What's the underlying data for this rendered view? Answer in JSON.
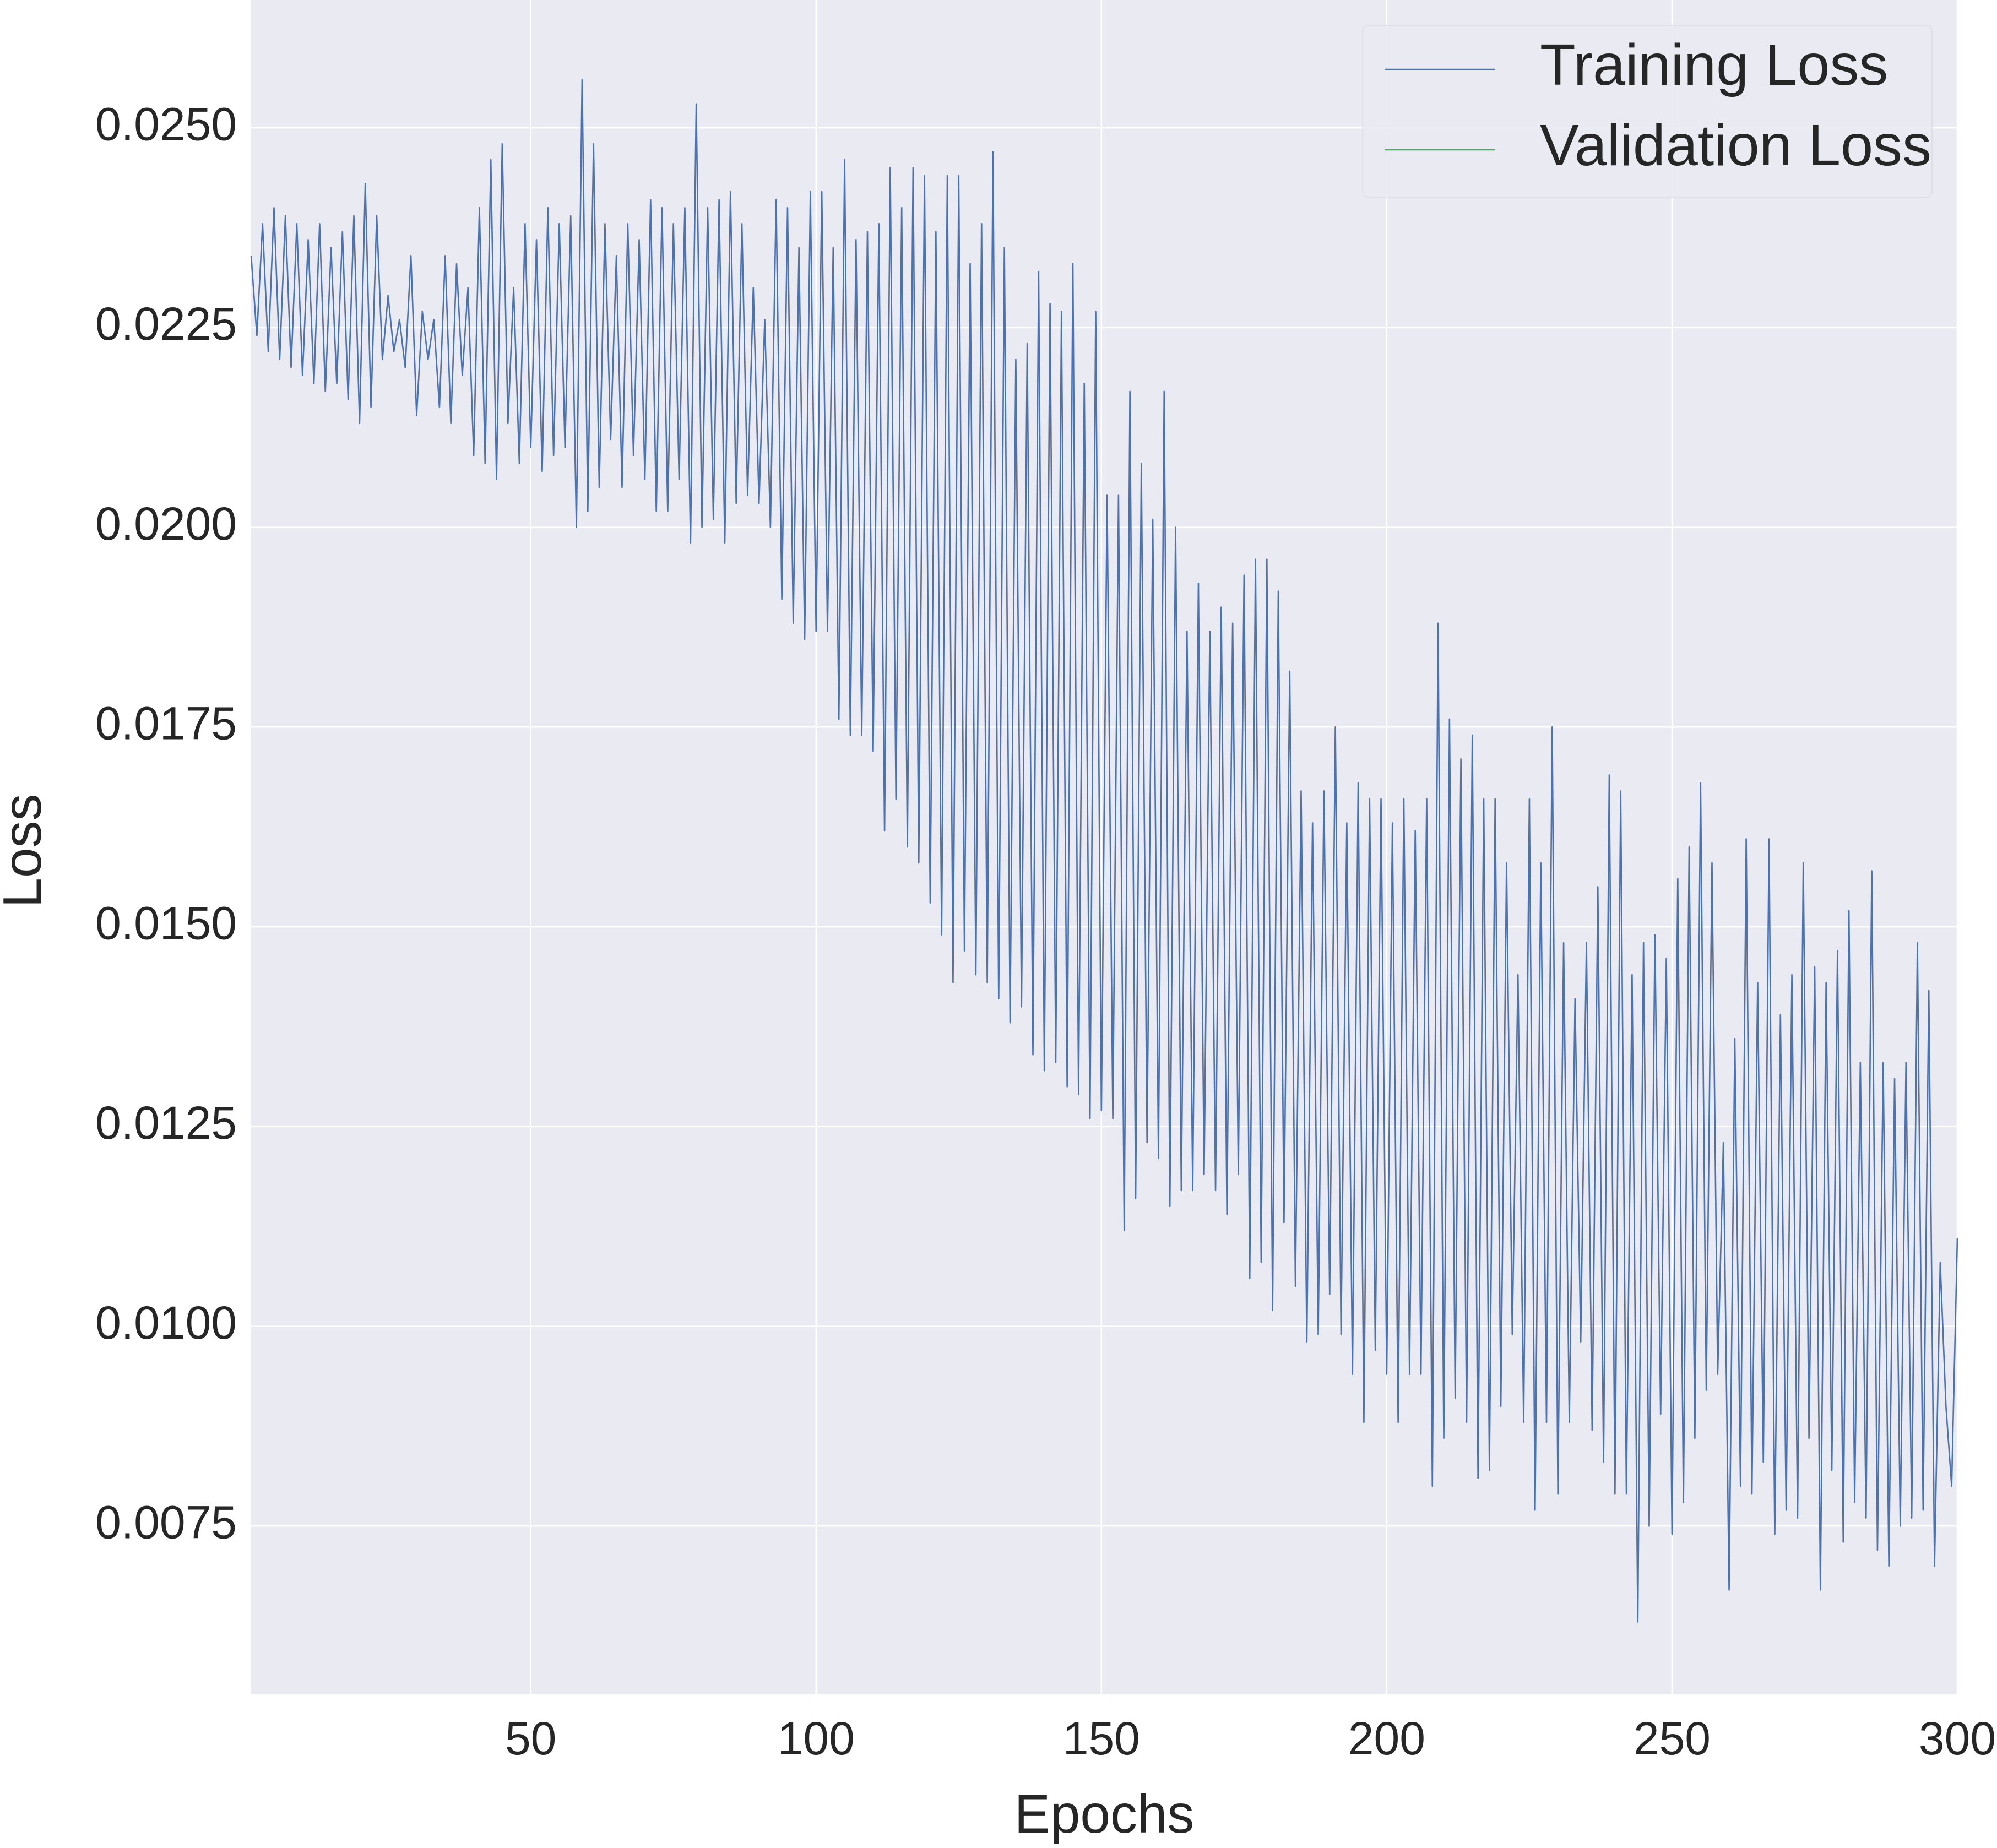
{
  "chart_data": {
    "type": "line",
    "x_label": "Epochs",
    "y_label": "Loss",
    "x": [
      1,
      2,
      3,
      4,
      5,
      6,
      7,
      8,
      9,
      10,
      11,
      12,
      13,
      14,
      15,
      16,
      17,
      18,
      19,
      20,
      21,
      22,
      23,
      24,
      25,
      26,
      27,
      28,
      29,
      30,
      31,
      32,
      33,
      34,
      35,
      36,
      37,
      38,
      39,
      40,
      41,
      42,
      43,
      44,
      45,
      46,
      47,
      48,
      49,
      50,
      51,
      52,
      53,
      54,
      55,
      56,
      57,
      58,
      59,
      60,
      61,
      62,
      63,
      64,
      65,
      66,
      67,
      68,
      69,
      70,
      71,
      72,
      73,
      74,
      75,
      76,
      77,
      78,
      79,
      80,
      81,
      82,
      83,
      84,
      85,
      86,
      87,
      88,
      89,
      90,
      91,
      92,
      93,
      94,
      95,
      96,
      97,
      98,
      99,
      100,
      101,
      102,
      103,
      104,
      105,
      106,
      107,
      108,
      109,
      110,
      111,
      112,
      113,
      114,
      115,
      116,
      117,
      118,
      119,
      120,
      121,
      122,
      123,
      124,
      125,
      126,
      127,
      128,
      129,
      130,
      131,
      132,
      133,
      134,
      135,
      136,
      137,
      138,
      139,
      140,
      141,
      142,
      143,
      144,
      145,
      146,
      147,
      148,
      149,
      150,
      151,
      152,
      153,
      154,
      155,
      156,
      157,
      158,
      159,
      160,
      161,
      162,
      163,
      164,
      165,
      166,
      167,
      168,
      169,
      170,
      171,
      172,
      173,
      174,
      175,
      176,
      177,
      178,
      179,
      180,
      181,
      182,
      183,
      184,
      185,
      186,
      187,
      188,
      189,
      190,
      191,
      192,
      193,
      194,
      195,
      196,
      197,
      198,
      199,
      200,
      201,
      202,
      203,
      204,
      205,
      206,
      207,
      208,
      209,
      210,
      211,
      212,
      213,
      214,
      215,
      216,
      217,
      218,
      219,
      220,
      221,
      222,
      223,
      224,
      225,
      226,
      227,
      228,
      229,
      230,
      231,
      232,
      233,
      234,
      235,
      236,
      237,
      238,
      239,
      240,
      241,
      242,
      243,
      244,
      245,
      246,
      247,
      248,
      249,
      250,
      251,
      252,
      253,
      254,
      255,
      256,
      257,
      258,
      259,
      260,
      261,
      262,
      263,
      264,
      265,
      266,
      267,
      268,
      269,
      270,
      271,
      272,
      273,
      274,
      275,
      276,
      277,
      278,
      279,
      280,
      281,
      282,
      283,
      284,
      285,
      286,
      287,
      288,
      289,
      290,
      291,
      292,
      293,
      294,
      295,
      296,
      297,
      298,
      299,
      300
    ],
    "series": [
      {
        "name": "Training Loss",
        "color": "#4c72b0",
        "values": [
          0.0234,
          0.0224,
          0.0238,
          0.0222,
          0.024,
          0.0221,
          0.0239,
          0.022,
          0.0238,
          0.0219,
          0.0236,
          0.0218,
          0.0238,
          0.0217,
          0.0235,
          0.0218,
          0.0237,
          0.0216,
          0.0239,
          0.0213,
          0.0243,
          0.0215,
          0.0239,
          0.0221,
          0.0229,
          0.0222,
          0.0226,
          0.022,
          0.0234,
          0.0214,
          0.0227,
          0.0221,
          0.0226,
          0.0215,
          0.0234,
          0.0213,
          0.0233,
          0.0219,
          0.023,
          0.0209,
          0.024,
          0.0208,
          0.0246,
          0.0206,
          0.0248,
          0.0213,
          0.023,
          0.0208,
          0.0238,
          0.021,
          0.0236,
          0.0207,
          0.024,
          0.0209,
          0.0238,
          0.021,
          0.0239,
          0.02,
          0.0256,
          0.0202,
          0.0248,
          0.0205,
          0.0238,
          0.0211,
          0.0234,
          0.0205,
          0.0238,
          0.0209,
          0.0236,
          0.0206,
          0.0241,
          0.0202,
          0.024,
          0.0202,
          0.0238,
          0.0206,
          0.024,
          0.0198,
          0.0253,
          0.02,
          0.024,
          0.0201,
          0.0241,
          0.0198,
          0.0242,
          0.0203,
          0.0238,
          0.0204,
          0.023,
          0.0203,
          0.0226,
          0.02,
          0.0241,
          0.0191,
          0.024,
          0.0188,
          0.0235,
          0.0186,
          0.0242,
          0.0187,
          0.0242,
          0.0187,
          0.0235,
          0.0176,
          0.0246,
          0.0174,
          0.0236,
          0.0174,
          0.0237,
          0.0172,
          0.0238,
          0.0162,
          0.0245,
          0.0166,
          0.024,
          0.016,
          0.0245,
          0.0158,
          0.0244,
          0.0153,
          0.0237,
          0.0149,
          0.0244,
          0.0143,
          0.0244,
          0.0147,
          0.0233,
          0.0144,
          0.0238,
          0.0143,
          0.0247,
          0.0141,
          0.0235,
          0.0138,
          0.0221,
          0.014,
          0.0223,
          0.0134,
          0.0232,
          0.0132,
          0.0228,
          0.0133,
          0.0227,
          0.013,
          0.0233,
          0.0129,
          0.0218,
          0.0126,
          0.0227,
          0.0127,
          0.0204,
          0.0126,
          0.0204,
          0.0112,
          0.0217,
          0.0116,
          0.0208,
          0.0123,
          0.0201,
          0.0121,
          0.0217,
          0.0115,
          0.02,
          0.0117,
          0.0187,
          0.0117,
          0.0193,
          0.0119,
          0.0187,
          0.0117,
          0.019,
          0.0114,
          0.0188,
          0.0119,
          0.0194,
          0.0106,
          0.0196,
          0.0108,
          0.0196,
          0.0102,
          0.0192,
          0.0113,
          0.0182,
          0.0105,
          0.0167,
          0.0098,
          0.0163,
          0.0099,
          0.0167,
          0.0104,
          0.0175,
          0.0099,
          0.0163,
          0.0094,
          0.0168,
          0.0088,
          0.0166,
          0.0097,
          0.0166,
          0.0094,
          0.0163,
          0.0088,
          0.0166,
          0.0094,
          0.0162,
          0.0094,
          0.0166,
          0.008,
          0.0188,
          0.0086,
          0.0176,
          0.0091,
          0.0171,
          0.0088,
          0.0174,
          0.0081,
          0.0166,
          0.0082,
          0.0166,
          0.009,
          0.0158,
          0.0099,
          0.0144,
          0.0088,
          0.0166,
          0.0077,
          0.0158,
          0.0088,
          0.0175,
          0.0079,
          0.0148,
          0.0088,
          0.0141,
          0.0098,
          0.0148,
          0.0087,
          0.0155,
          0.0083,
          0.0169,
          0.0079,
          0.0167,
          0.0079,
          0.0144,
          0.0063,
          0.0148,
          0.0075,
          0.0149,
          0.0089,
          0.0146,
          0.0074,
          0.0156,
          0.0078,
          0.016,
          0.0086,
          0.0168,
          0.0092,
          0.0158,
          0.0094,
          0.0123,
          0.0067,
          0.0136,
          0.008,
          0.0161,
          0.0079,
          0.0143,
          0.0083,
          0.0161,
          0.0074,
          0.0139,
          0.0077,
          0.0144,
          0.0076,
          0.0158,
          0.0086,
          0.0145,
          0.0067,
          0.0143,
          0.0082,
          0.0147,
          0.0073,
          0.0152,
          0.0078,
          0.0133,
          0.0076,
          0.0157,
          0.0072,
          0.0133,
          0.007,
          0.0131,
          0.0075,
          0.0133,
          0.0076,
          0.0148,
          0.0077,
          0.0142,
          0.007,
          0.0108,
          0.009,
          0.008,
          0.0111
        ]
      },
      {
        "name": "Validation Loss",
        "color": "#55a868",
        "values": [
          null,
          null,
          null,
          null,
          null,
          null,
          null,
          null,
          null,
          null,
          null,
          null,
          null,
          null,
          null,
          null,
          null,
          null,
          null,
          null,
          null,
          null,
          null,
          null,
          null,
          null,
          null,
          null,
          null,
          null,
          null,
          null,
          null,
          null,
          null,
          null,
          null,
          null,
          null,
          null,
          null,
          null,
          null,
          null,
          null,
          null,
          null,
          null,
          null,
          null,
          null,
          null,
          null,
          null,
          null,
          null,
          null,
          null,
          null,
          null,
          null,
          null,
          null,
          null,
          null,
          null,
          null,
          null,
          null,
          null,
          null,
          null,
          null,
          null,
          null,
          null,
          null,
          null,
          null,
          null,
          null,
          null,
          null,
          null,
          null,
          null,
          null,
          null,
          null,
          null,
          null,
          null,
          null,
          null,
          null,
          null,
          null,
          null,
          null,
          null,
          null,
          null,
          null,
          null,
          null,
          null,
          null,
          null,
          null,
          null,
          null,
          null,
          null,
          null,
          null,
          null,
          null,
          null,
          null,
          null,
          null,
          null,
          null,
          null,
          null,
          null,
          null,
          null,
          null,
          null,
          null,
          null,
          null,
          null,
          null,
          null,
          null,
          null,
          null,
          null,
          null,
          null,
          null,
          null,
          null,
          null,
          null,
          null,
          null,
          null,
          null,
          null,
          null,
          null,
          null,
          null,
          null,
          null,
          null,
          null,
          null,
          null,
          null,
          null,
          null,
          null,
          null,
          null,
          null,
          null,
          null,
          null,
          null,
          null,
          null,
          null,
          null,
          null,
          null,
          null,
          null,
          null,
          null,
          null,
          null,
          null,
          null,
          null,
          null,
          null,
          null,
          null,
          null,
          null,
          null,
          null,
          null,
          null,
          null,
          null,
          null,
          null,
          null,
          null,
          null,
          null,
          null,
          null,
          null,
          null,
          null,
          null,
          null,
          null,
          null,
          null,
          null,
          null,
          null,
          null,
          null,
          null,
          null,
          null,
          null,
          null,
          null,
          null,
          null,
          null,
          null,
          null,
          null,
          null,
          null,
          null,
          null,
          null,
          null,
          null,
          null,
          null,
          null,
          null,
          null,
          null,
          null,
          null,
          null,
          null,
          null,
          null,
          null,
          null,
          null,
          null,
          null,
          null,
          null,
          null,
          null,
          null,
          null,
          null,
          null,
          null,
          null,
          null,
          null,
          null,
          null,
          null,
          null,
          null,
          null,
          null,
          null,
          null,
          null,
          null,
          null,
          null,
          null,
          null,
          null,
          null,
          null,
          null,
          null,
          null,
          null,
          null,
          null,
          null,
          null,
          null,
          null,
          null,
          null,
          null
        ]
      }
    ],
    "xlim": [
      1,
      300
    ],
    "xticks": [
      50,
      100,
      150,
      200,
      250,
      300
    ],
    "ylim": [
      0.0054,
      0.0266
    ],
    "yticks": [
      {
        "value": 0.0075,
        "label": "0.0075"
      },
      {
        "value": 0.01,
        "label": "0.0100"
      },
      {
        "value": 0.0125,
        "label": "0.0125"
      },
      {
        "value": 0.015,
        "label": "0.0150"
      },
      {
        "value": 0.0175,
        "label": "0.0175"
      },
      {
        "value": 0.02,
        "label": "0.0200"
      },
      {
        "value": 0.0225,
        "label": "0.0225"
      },
      {
        "value": 0.025,
        "label": "0.0250"
      }
    ],
    "grid": true,
    "legend": "upper right"
  }
}
